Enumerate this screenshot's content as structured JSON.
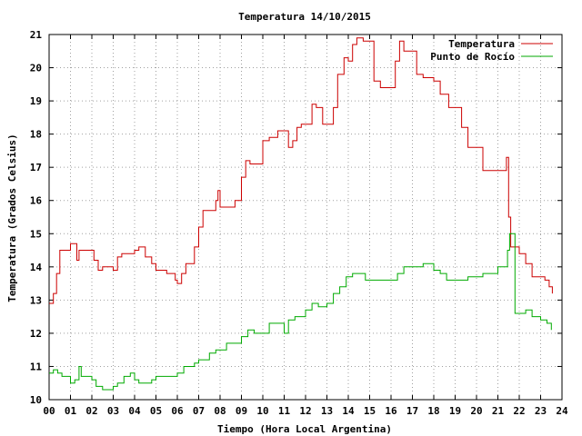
{
  "chart_data": {
    "type": "line",
    "title": "Temperatura 14/10/2015",
    "xlabel": "Tiempo (Hora Local Argentina)",
    "ylabel": "Temperatura (Grados Celsius)",
    "xlim": [
      0,
      24
    ],
    "ylim": [
      10,
      21
    ],
    "x_ticks": [
      0,
      1,
      2,
      3,
      4,
      5,
      6,
      7,
      8,
      9,
      10,
      11,
      12,
      13,
      14,
      15,
      16,
      17,
      18,
      19,
      20,
      21,
      22,
      23,
      24
    ],
    "x_tick_labels": [
      "00",
      "01",
      "02",
      "03",
      "04",
      "05",
      "06",
      "07",
      "08",
      "09",
      "10",
      "11",
      "12",
      "13",
      "14",
      "15",
      "16",
      "17",
      "18",
      "19",
      "20",
      "21",
      "22",
      "23",
      "24"
    ],
    "y_ticks": [
      10,
      11,
      12,
      13,
      14,
      15,
      16,
      17,
      18,
      19,
      20,
      21
    ],
    "y_tick_labels": [
      "10",
      "11",
      "12",
      "13",
      "14",
      "15",
      "16",
      "17",
      "18",
      "19",
      "20",
      "21"
    ],
    "grid": true,
    "legend_position": "top-right",
    "series": [
      {
        "name": "Temperatura",
        "color": "#cc0000",
        "x": [
          0.0,
          0.2,
          0.35,
          0.5,
          0.6,
          1.0,
          1.3,
          1.4,
          1.5,
          2.0,
          2.1,
          2.3,
          2.5,
          3.0,
          3.2,
          3.4,
          3.6,
          4.0,
          4.2,
          4.5,
          4.8,
          5.0,
          5.5,
          5.9,
          6.0,
          6.2,
          6.4,
          6.6,
          6.8,
          7.0,
          7.2,
          7.5,
          7.8,
          7.9,
          8.0,
          8.2,
          8.5,
          8.7,
          9.0,
          9.2,
          9.4,
          9.8,
          10.0,
          10.3,
          10.7,
          11.0,
          11.2,
          11.4,
          11.6,
          11.8,
          12.0,
          12.3,
          12.5,
          12.8,
          13.0,
          13.3,
          13.5,
          13.8,
          14.0,
          14.2,
          14.4,
          14.7,
          15.0,
          15.2,
          15.5,
          15.8,
          16.0,
          16.2,
          16.4,
          16.6,
          16.8,
          17.0,
          17.2,
          17.5,
          17.8,
          18.0,
          18.3,
          18.7,
          19.0,
          19.3,
          19.6,
          20.0,
          20.3,
          20.6,
          21.0,
          21.4,
          21.5,
          21.6,
          21.8,
          22.0,
          22.3,
          22.6,
          23.0,
          23.2,
          23.4,
          23.55
        ],
        "y": [
          12.9,
          13.2,
          13.8,
          14.5,
          14.5,
          14.7,
          14.2,
          14.5,
          14.5,
          14.5,
          14.2,
          13.9,
          14.0,
          13.9,
          14.3,
          14.4,
          14.4,
          14.5,
          14.6,
          14.3,
          14.1,
          13.9,
          13.8,
          13.6,
          13.5,
          13.8,
          14.1,
          14.1,
          14.6,
          15.2,
          15.7,
          15.7,
          16.0,
          16.3,
          15.8,
          15.8,
          15.8,
          16.0,
          16.7,
          17.2,
          17.1,
          17.1,
          17.8,
          17.9,
          18.1,
          18.1,
          17.6,
          17.8,
          18.2,
          18.3,
          18.3,
          18.9,
          18.8,
          18.3,
          18.3,
          18.8,
          19.8,
          20.3,
          20.2,
          20.7,
          20.9,
          20.8,
          20.8,
          19.6,
          19.4,
          19.4,
          19.4,
          20.2,
          20.8,
          20.5,
          20.5,
          20.5,
          19.8,
          19.7,
          19.7,
          19.6,
          19.2,
          18.8,
          18.8,
          18.2,
          17.6,
          17.6,
          16.9,
          16.9,
          16.9,
          17.3,
          15.5,
          14.6,
          14.6,
          14.4,
          14.1,
          13.7,
          13.7,
          13.6,
          13.4,
          13.2
        ]
      },
      {
        "name": "Punto de Rocío",
        "color": "#00aa00",
        "x": [
          0.0,
          0.2,
          0.4,
          0.6,
          0.8,
          1.0,
          1.2,
          1.4,
          1.5,
          1.7,
          2.0,
          2.2,
          2.5,
          2.8,
          3.0,
          3.2,
          3.5,
          3.8,
          4.0,
          4.2,
          4.5,
          4.8,
          5.0,
          5.3,
          5.6,
          6.0,
          6.3,
          6.6,
          6.8,
          7.0,
          7.2,
          7.5,
          7.8,
          8.0,
          8.3,
          8.6,
          9.0,
          9.3,
          9.6,
          10.0,
          10.3,
          10.6,
          11.0,
          11.2,
          11.5,
          11.8,
          12.0,
          12.3,
          12.6,
          13.0,
          13.3,
          13.6,
          13.9,
          14.2,
          14.5,
          14.8,
          15.0,
          15.5,
          16.0,
          16.3,
          16.6,
          17.0,
          17.5,
          18.0,
          18.3,
          18.6,
          19.0,
          19.3,
          19.6,
          20.0,
          20.3,
          20.6,
          21.0,
          21.3,
          21.45,
          21.55,
          21.8,
          22.0,
          22.3,
          22.6,
          23.0,
          23.3,
          23.5
        ],
        "y": [
          10.8,
          10.9,
          10.8,
          10.7,
          10.7,
          10.5,
          10.6,
          11.0,
          10.7,
          10.7,
          10.6,
          10.4,
          10.3,
          10.3,
          10.4,
          10.5,
          10.7,
          10.8,
          10.6,
          10.5,
          10.5,
          10.6,
          10.7,
          10.7,
          10.7,
          10.8,
          11.0,
          11.0,
          11.1,
          11.2,
          11.2,
          11.4,
          11.5,
          11.5,
          11.7,
          11.7,
          11.9,
          12.1,
          12.0,
          12.0,
          12.3,
          12.3,
          12.0,
          12.4,
          12.5,
          12.5,
          12.7,
          12.9,
          12.8,
          12.9,
          13.2,
          13.4,
          13.7,
          13.8,
          13.8,
          13.6,
          13.6,
          13.6,
          13.6,
          13.8,
          14.0,
          14.0,
          14.1,
          13.9,
          13.8,
          13.6,
          13.6,
          13.6,
          13.7,
          13.7,
          13.8,
          13.8,
          14.0,
          14.0,
          14.5,
          15.0,
          12.6,
          12.6,
          12.7,
          12.5,
          12.4,
          12.3,
          12.1
        ]
      }
    ]
  }
}
